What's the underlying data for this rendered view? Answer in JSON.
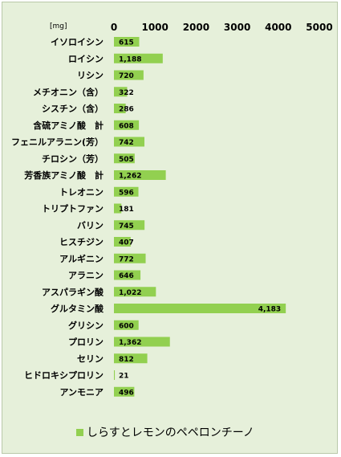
{
  "chart_data": {
    "type": "bar",
    "orientation": "horizontal",
    "unit_label": "[mg]",
    "xlim": [
      0,
      5000
    ],
    "x_ticks": [
      "0",
      "1000",
      "2000",
      "3000",
      "4000",
      "5000"
    ],
    "categories": [
      "イソロイシン",
      "ロイシン",
      "リシン",
      "メチオニン（含）",
      "シスチン（含）",
      "含硫アミノ酸　計",
      "フェニルアラニン(芳）",
      "チロシン（芳）",
      "芳香族アミノ酸　計",
      "トレオニン",
      "トリプトファン",
      "バリン",
      "ヒスチジン",
      "アルギニン",
      "アラニン",
      "アスパラギン酸",
      "グルタミン酸",
      "グリシン",
      "プロリン",
      "セリン",
      "ヒドロキシプロリン",
      "アンモニア"
    ],
    "series": [
      {
        "name": "しらすとレモンのペペロンチーノ",
        "values": [
          615,
          1188,
          720,
          322,
          286,
          608,
          742,
          505,
          1262,
          596,
          181,
          745,
          407,
          772,
          646,
          1022,
          4183,
          600,
          1362,
          812,
          21,
          496
        ],
        "value_labels": [
          "615",
          "1,188",
          "720",
          "322",
          "286",
          "608",
          "742",
          "505",
          "1,262",
          "596",
          "181",
          "745",
          "407",
          "772",
          "646",
          "1,022",
          "4,183",
          "600",
          "1,362",
          "812",
          "21",
          "496"
        ]
      }
    ],
    "legend_position": "bottom",
    "grid": false,
    "colors": {
      "bar": "#92d050",
      "background": "#e6f0da"
    }
  }
}
